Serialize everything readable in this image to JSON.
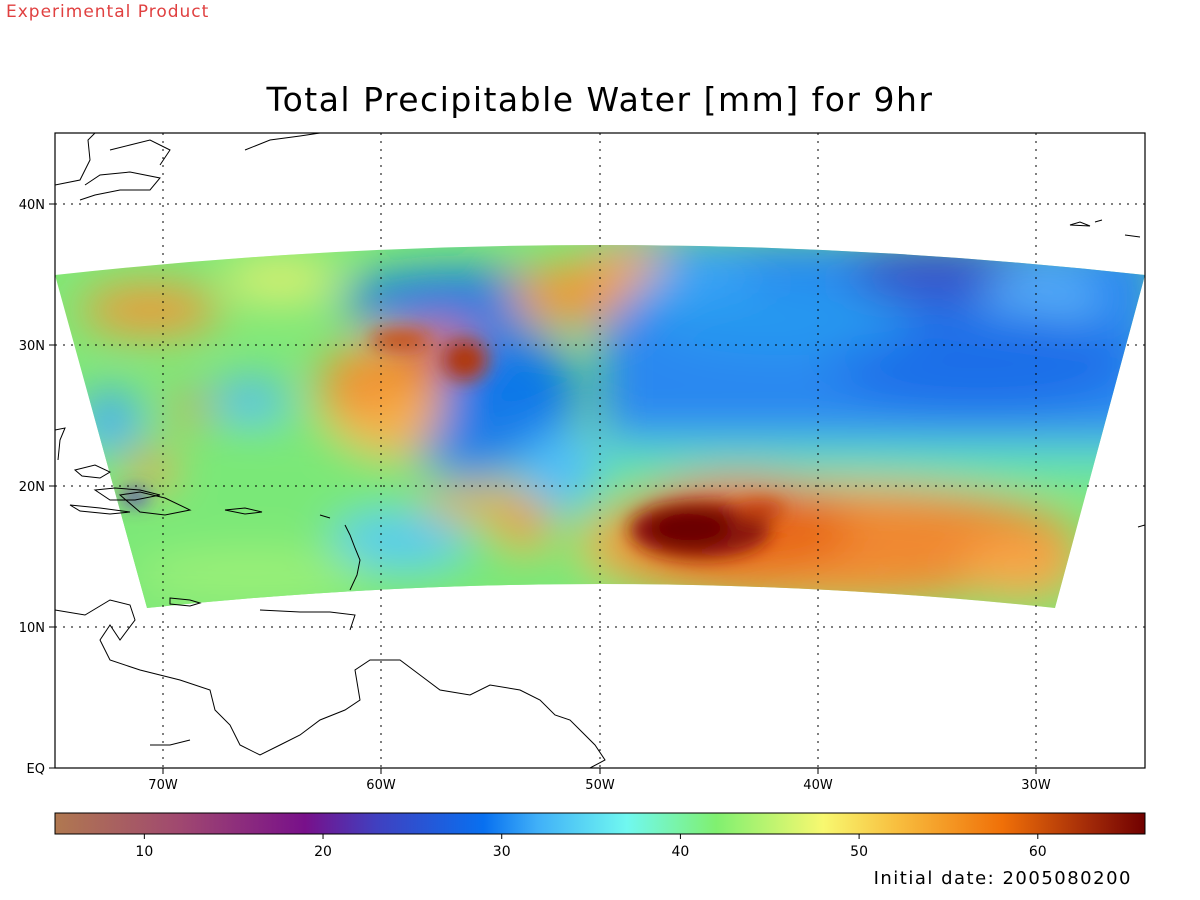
{
  "header": {
    "experimental_label": "Experimental Product",
    "title": "Total Precipitable Water [mm] for 9hr"
  },
  "footer": {
    "initial_date": "Initial date: 2005080200"
  },
  "map": {
    "lon_range": [
      -75,
      -25
    ],
    "lat_range": [
      0,
      45
    ],
    "lon_ticks": [
      {
        "value": -70,
        "label": "70W"
      },
      {
        "value": -60,
        "label": "60W"
      },
      {
        "value": -50,
        "label": "50W"
      },
      {
        "value": -40,
        "label": "40W"
      },
      {
        "value": -30,
        "label": "30W"
      }
    ],
    "lat_ticks": [
      {
        "value": 40,
        "label": "40N"
      },
      {
        "value": 30,
        "label": "30N"
      },
      {
        "value": 20,
        "label": "20N"
      },
      {
        "value": 10,
        "label": "10N"
      },
      {
        "value": 0,
        "label": "EQ"
      }
    ],
    "gridlines": "dotted",
    "data_domain": {
      "lon_range": [
        -75,
        -25
      ],
      "lat_north": 37,
      "lat_south": 11.5
    }
  },
  "colorbar": {
    "range": [
      5,
      66
    ],
    "ticks": [
      {
        "value": 10,
        "label": "10"
      },
      {
        "value": 20,
        "label": "20"
      },
      {
        "value": 30,
        "label": "30"
      },
      {
        "value": 40,
        "label": "40"
      },
      {
        "value": 50,
        "label": "50"
      },
      {
        "value": 60,
        "label": "60"
      }
    ],
    "stops": [
      {
        "value": 5,
        "color": "#b07850"
      },
      {
        "value": 12,
        "color": "#a04870"
      },
      {
        "value": 19,
        "color": "#78108a"
      },
      {
        "value": 23,
        "color": "#4040c0"
      },
      {
        "value": 29,
        "color": "#0870f0"
      },
      {
        "value": 32,
        "color": "#40b0f8"
      },
      {
        "value": 37,
        "color": "#70f8f0"
      },
      {
        "value": 42,
        "color": "#80f070"
      },
      {
        "value": 48,
        "color": "#f8f870"
      },
      {
        "value": 52,
        "color": "#f8c040"
      },
      {
        "value": 58,
        "color": "#f07008"
      },
      {
        "value": 63,
        "color": "#a02808"
      },
      {
        "value": 66,
        "color": "#700000"
      }
    ]
  },
  "field_features": [
    {
      "name": "tropical-storm-core",
      "lon": -45.5,
      "lat": 16.5,
      "value": 65
    },
    {
      "name": "storm-wrap",
      "lon": -42,
      "lat": 17,
      "value": 58
    },
    {
      "name": "south-band",
      "lon": -38,
      "lat": 15,
      "value": 55
    },
    {
      "name": "dry-north-east",
      "lon": -34,
      "lat": 34,
      "value": 24
    },
    {
      "name": "dry-tongue",
      "lon": -52,
      "lat": 25,
      "value": 30
    },
    {
      "name": "moist-cloud-cluster",
      "lon": -58,
      "lat": 28,
      "value": 55
    }
  ]
}
